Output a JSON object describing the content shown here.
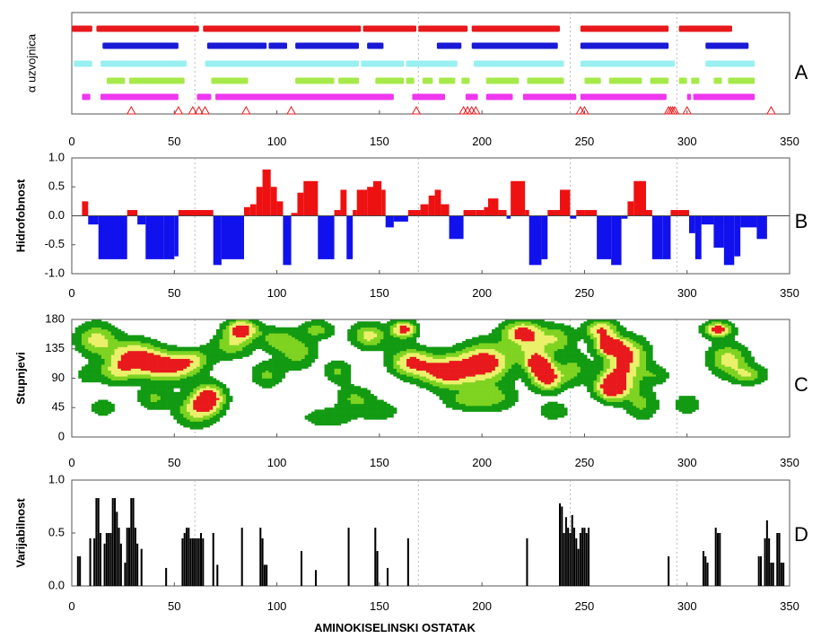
{
  "chart_data": [
    {
      "panel": "A",
      "letter": "A",
      "type": "segments",
      "ylabel": "α uzvojnica",
      "xlim": [
        0,
        350
      ],
      "xticks": [
        0,
        50,
        100,
        150,
        200,
        250,
        300,
        350
      ],
      "guides": [
        60,
        169,
        243,
        295
      ],
      "tracks": [
        {
          "color": "#e8191c",
          "segments": [
            [
              0,
              10
            ],
            [
              12,
              62
            ],
            [
              64,
              141
            ],
            [
              142,
              168
            ],
            [
              169,
              193
            ],
            [
              195,
              238
            ],
            [
              248,
              291
            ],
            [
              296,
              322
            ]
          ]
        },
        {
          "color": "#1a1ad6",
          "segments": [
            [
              15,
              52
            ],
            [
              66,
              95
            ],
            [
              96,
              105
            ],
            [
              109,
              140
            ],
            [
              144,
              152
            ],
            [
              178,
              190
            ],
            [
              195,
              237
            ],
            [
              248,
              291
            ],
            [
              309,
              330
            ]
          ]
        },
        {
          "color": "#99f0f0",
          "segments": [
            [
              1,
              10
            ],
            [
              14,
              56
            ],
            [
              65,
              140
            ],
            [
              141,
              162
            ],
            [
              163,
              188
            ],
            [
              196,
              240
            ],
            [
              248,
              294
            ],
            [
              309,
              333
            ]
          ]
        },
        {
          "color": "#a6ea4a",
          "segments": [
            [
              17,
              26
            ],
            [
              28,
              55
            ],
            [
              68,
              86
            ],
            [
              109,
              128
            ],
            [
              130,
              140
            ],
            [
              148,
              162
            ],
            [
              163,
              167
            ],
            [
              171,
              176
            ],
            [
              179,
              187
            ],
            [
              190,
              194
            ],
            [
              202,
              218
            ],
            [
              222,
              240
            ],
            [
              250,
              258
            ],
            [
              262,
              278
            ],
            [
              282,
              291
            ],
            [
              296,
              300
            ],
            [
              302,
              306
            ],
            [
              313,
              317
            ],
            [
              320,
              333
            ]
          ]
        },
        {
          "color": "#ee37ee",
          "segments": [
            [
              5,
              9
            ],
            [
              14,
              52
            ],
            [
              61,
              68
            ],
            [
              70,
              157
            ],
            [
              166,
              182
            ],
            [
              192,
              198
            ],
            [
              202,
              215
            ],
            [
              220,
              246
            ],
            [
              248,
              290
            ],
            [
              300,
              302
            ],
            [
              303,
              333
            ]
          ]
        }
      ],
      "markers": [
        29,
        52,
        59,
        62,
        65,
        85,
        107,
        168,
        191,
        193,
        195,
        197,
        248,
        250,
        291,
        292,
        293,
        294,
        300,
        341
      ]
    },
    {
      "panel": "B",
      "letter": "B",
      "type": "bar",
      "ylabel": "Hidrofobnost",
      "xlim": [
        0,
        350
      ],
      "ylim": [
        -1.0,
        1.0
      ],
      "xticks": [
        0,
        50,
        100,
        150,
        200,
        250,
        300,
        350
      ],
      "yticks": [
        -1.0,
        -0.5,
        0.0,
        0.5,
        1.0
      ],
      "guides": [
        60,
        169,
        243,
        295
      ],
      "colors": {
        "positive": "#ee1111",
        "negative": "#1111ee"
      },
      "bins": [
        [
          5,
          8,
          0.25
        ],
        [
          8,
          13,
          -0.15
        ],
        [
          13,
          27,
          -0.75
        ],
        [
          27,
          32,
          0.1
        ],
        [
          32,
          36,
          -0.15
        ],
        [
          36,
          45,
          -0.75
        ],
        [
          45,
          50,
          -0.75
        ],
        [
          50,
          52,
          -0.7
        ],
        [
          52,
          69,
          0.1
        ],
        [
          69,
          73,
          -0.85
        ],
        [
          73,
          84,
          -0.75
        ],
        [
          84,
          87,
          0.15
        ],
        [
          87,
          90,
          0.2
        ],
        [
          90,
          93,
          0.5
        ],
        [
          93,
          97,
          0.8
        ],
        [
          97,
          100,
          0.5
        ],
        [
          100,
          103,
          0.25
        ],
        [
          103,
          107,
          -0.85
        ],
        [
          107,
          110,
          0.05
        ],
        [
          110,
          113,
          0.4
        ],
        [
          113,
          120,
          0.6
        ],
        [
          120,
          128,
          -0.75
        ],
        [
          128,
          131,
          0.1
        ],
        [
          131,
          134,
          0.45
        ],
        [
          134,
          137,
          -0.75
        ],
        [
          137,
          139,
          0.1
        ],
        [
          139,
          144,
          0.45
        ],
        [
          144,
          147,
          0.5
        ],
        [
          147,
          151,
          0.6
        ],
        [
          151,
          153,
          0.45
        ],
        [
          153,
          157,
          -0.2
        ],
        [
          157,
          164,
          -0.1
        ],
        [
          164,
          170,
          0.1
        ],
        [
          170,
          174,
          0.2
        ],
        [
          174,
          177,
          0.35
        ],
        [
          177,
          180,
          0.45
        ],
        [
          180,
          184,
          0.2
        ],
        [
          184,
          191,
          -0.4
        ],
        [
          191,
          197,
          0.1
        ],
        [
          197,
          201,
          0.1
        ],
        [
          201,
          203,
          0.15
        ],
        [
          203,
          208,
          0.3
        ],
        [
          208,
          212,
          0.1
        ],
        [
          212,
          214,
          -0.05
        ],
        [
          214,
          221,
          0.6
        ],
        [
          221,
          223,
          0.1
        ],
        [
          223,
          229,
          -0.85
        ],
        [
          229,
          232,
          -0.75
        ],
        [
          232,
          238,
          0.1
        ],
        [
          238,
          243,
          0.45
        ],
        [
          243,
          246,
          -0.05
        ],
        [
          246,
          250,
          0.1
        ],
        [
          250,
          256,
          0.1
        ],
        [
          256,
          263,
          -0.75
        ],
        [
          263,
          268,
          -0.85
        ],
        [
          268,
          271,
          -0.05
        ],
        [
          271,
          274,
          0.25
        ],
        [
          274,
          280,
          0.6
        ],
        [
          280,
          283,
          0.1
        ],
        [
          283,
          288,
          -0.75
        ],
        [
          288,
          292,
          -0.75
        ],
        [
          292,
          296,
          0.1
        ],
        [
          296,
          301,
          0.1
        ],
        [
          301,
          304,
          -0.3
        ],
        [
          304,
          307,
          -0.75
        ],
        [
          307,
          313,
          -0.15
        ],
        [
          313,
          318,
          -0.55
        ],
        [
          318,
          323,
          -0.85
        ],
        [
          323,
          326,
          -0.7
        ],
        [
          326,
          334,
          -0.2
        ],
        [
          334,
          339,
          -0.4
        ]
      ]
    },
    {
      "panel": "C",
      "letter": "C",
      "type": "heatmap",
      "ylabel": "Stupnjevi",
      "xlim": [
        0,
        350
      ],
      "ylim": [
        0,
        180
      ],
      "xticks": [
        0,
        50,
        100,
        150,
        200,
        250,
        300,
        350
      ],
      "yticks": [
        0,
        45,
        90,
        135,
        180
      ],
      "guides": [
        60,
        169,
        243,
        295
      ],
      "levels": [
        {
          "threshold": 0.18,
          "color": "#129a12"
        },
        {
          "threshold": 0.42,
          "color": "#7ed321"
        },
        {
          "threshold": 0.62,
          "color": "#eaf06a"
        },
        {
          "threshold": 0.85,
          "color": "#e8191c"
        }
      ],
      "blobs": [
        [
          47,
          108,
          14,
          22,
          1.0
        ],
        [
          31,
          125,
          12,
          24,
          0.85
        ],
        [
          67,
          60,
          8,
          22,
          1.0
        ],
        [
          60,
          40,
          10,
          25,
          0.6
        ],
        [
          83,
          165,
          8,
          16,
          1.0
        ],
        [
          78,
          140,
          10,
          20,
          0.55
        ],
        [
          12,
          150,
          10,
          25,
          0.7
        ],
        [
          22,
          100,
          9,
          20,
          0.55
        ],
        [
          40,
          60,
          8,
          18,
          0.45
        ],
        [
          15,
          45,
          7,
          14,
          0.35
        ],
        [
          95,
          95,
          8,
          20,
          0.45
        ],
        [
          110,
          130,
          9,
          25,
          0.55
        ],
        [
          100,
          150,
          8,
          18,
          0.5
        ],
        [
          120,
          165,
          8,
          14,
          0.5
        ],
        [
          138,
          60,
          9,
          18,
          0.45
        ],
        [
          145,
          155,
          9,
          20,
          0.7
        ],
        [
          165,
          115,
          10,
          22,
          0.85
        ],
        [
          162,
          165,
          6,
          14,
          1.0
        ],
        [
          183,
          100,
          13,
          25,
          1.0
        ],
        [
          202,
          115,
          13,
          30,
          1.0
        ],
        [
          205,
          60,
          12,
          20,
          0.5
        ],
        [
          220,
          160,
          10,
          18,
          1.0
        ],
        [
          225,
          130,
          8,
          20,
          0.6
        ],
        [
          232,
          90,
          8,
          20,
          1.0
        ],
        [
          228,
          110,
          6,
          14,
          0.95
        ],
        [
          237,
          150,
          8,
          22,
          0.55
        ],
        [
          258,
          165,
          8,
          16,
          0.85
        ],
        [
          262,
          140,
          7,
          14,
          1.0
        ],
        [
          263,
          75,
          8,
          20,
          1.0
        ],
        [
          268,
          100,
          10,
          30,
          0.7
        ],
        [
          272,
          130,
          10,
          25,
          0.6
        ],
        [
          278,
          50,
          8,
          25,
          0.45
        ],
        [
          315,
          165,
          7,
          12,
          1.0
        ],
        [
          320,
          120,
          10,
          24,
          0.7
        ],
        [
          330,
          95,
          9,
          15,
          0.55
        ],
        [
          125,
          30,
          12,
          15,
          0.4
        ],
        [
          150,
          40,
          10,
          16,
          0.35
        ],
        [
          190,
          55,
          10,
          15,
          0.35
        ],
        [
          235,
          40,
          8,
          15,
          0.35
        ],
        [
          300,
          50,
          8,
          20,
          0.3
        ],
        [
          60,
          120,
          8,
          16,
          0.45
        ],
        [
          130,
          100,
          7,
          18,
          0.45
        ],
        [
          245,
          105,
          7,
          25,
          0.45
        ],
        [
          8,
          95,
          6,
          15,
          0.3
        ],
        [
          285,
          95,
          7,
          14,
          0.35
        ]
      ]
    },
    {
      "panel": "D",
      "letter": "D",
      "type": "bar",
      "ylabel": "Varijabilnost",
      "xlim": [
        0,
        350
      ],
      "ylim": [
        0,
        1.0
      ],
      "xticks": [
        0,
        50,
        100,
        150,
        200,
        250,
        300,
        350
      ],
      "yticks": [
        0.0,
        0.5,
        1.0
      ],
      "xlabel": "AMINOKISELINSKI OSTATAK",
      "guides": [
        60,
        169,
        243,
        295
      ],
      "bar_width": 0.9,
      "bars": [
        [
          3,
          0.28
        ],
        [
          4,
          0.28
        ],
        [
          9,
          0.45
        ],
        [
          11,
          0.45
        ],
        [
          12,
          0.83
        ],
        [
          13,
          0.83
        ],
        [
          14,
          0.5
        ],
        [
          16,
          0.4
        ],
        [
          17,
          0.5
        ],
        [
          18,
          0.5
        ],
        [
          19,
          0.5
        ],
        [
          20,
          0.83
        ],
        [
          21,
          0.83
        ],
        [
          22,
          0.7
        ],
        [
          23,
          0.55
        ],
        [
          24,
          0.4
        ],
        [
          26,
          0.22
        ],
        [
          27,
          0.55
        ],
        [
          28,
          0.55
        ],
        [
          29,
          0.83
        ],
        [
          30,
          0.83
        ],
        [
          31,
          0.55
        ],
        [
          32,
          0.4
        ],
        [
          34,
          0.35
        ],
        [
          46,
          0.17
        ],
        [
          54,
          0.45
        ],
        [
          55,
          0.5
        ],
        [
          56,
          0.55
        ],
        [
          57,
          0.55
        ],
        [
          58,
          0.45
        ],
        [
          59,
          0.45
        ],
        [
          60,
          0.45
        ],
        [
          61,
          0.45
        ],
        [
          62,
          0.45
        ],
        [
          63,
          0.5
        ],
        [
          64,
          0.45
        ],
        [
          69,
          0.5
        ],
        [
          71,
          0.2
        ],
        [
          83,
          0.55
        ],
        [
          92,
          0.55
        ],
        [
          93,
          0.45
        ],
        [
          94,
          0.2
        ],
        [
          95,
          0.2
        ],
        [
          112,
          0.33
        ],
        [
          119,
          0.15
        ],
        [
          135,
          0.55
        ],
        [
          148,
          0.55
        ],
        [
          149,
          0.33
        ],
        [
          154,
          0.17
        ],
        [
          164,
          0.45
        ],
        [
          222,
          0.45
        ],
        [
          238,
          0.78
        ],
        [
          239,
          0.75
        ],
        [
          240,
          0.5
        ],
        [
          241,
          0.65
        ],
        [
          242,
          0.55
        ],
        [
          243,
          0.5
        ],
        [
          244,
          0.67
        ],
        [
          245,
          0.55
        ],
        [
          246,
          0.45
        ],
        [
          247,
          0.35
        ],
        [
          248,
          0.5
        ],
        [
          249,
          0.55
        ],
        [
          250,
          0.55
        ],
        [
          251,
          0.5
        ],
        [
          252,
          0.55
        ],
        [
          291,
          0.28
        ],
        [
          308,
          0.33
        ],
        [
          309,
          0.28
        ],
        [
          310,
          0.22
        ],
        [
          314,
          0.55
        ],
        [
          315,
          0.5
        ],
        [
          316,
          0.5
        ],
        [
          335,
          0.28
        ],
        [
          336,
          0.28
        ],
        [
          338,
          0.45
        ],
        [
          339,
          0.62
        ],
        [
          340,
          0.45
        ],
        [
          341,
          0.22
        ],
        [
          342,
          0.22
        ],
        [
          344,
          0.5
        ],
        [
          345,
          0.5
        ],
        [
          346,
          0.22
        ],
        [
          347,
          0.22
        ]
      ]
    }
  ]
}
